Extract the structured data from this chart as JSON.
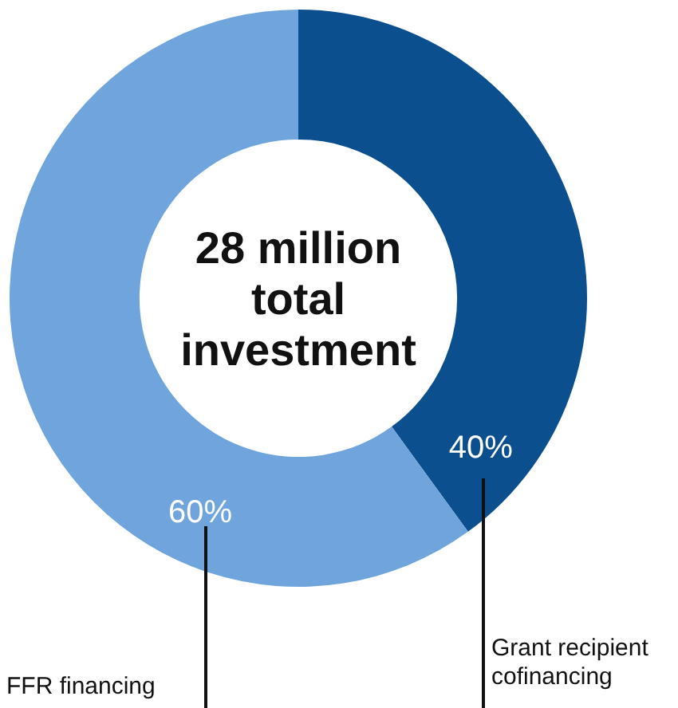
{
  "chart_data": {
    "type": "donut",
    "title": "28 million total investment",
    "categories": [
      "Grant recipient cofinancing",
      "FFR financing"
    ],
    "values": [
      40,
      60
    ],
    "colors": [
      "#0b4f8f",
      "#6fa5dc"
    ],
    "value_labels": [
      "40%",
      "60%"
    ],
    "legend": false
  }
}
